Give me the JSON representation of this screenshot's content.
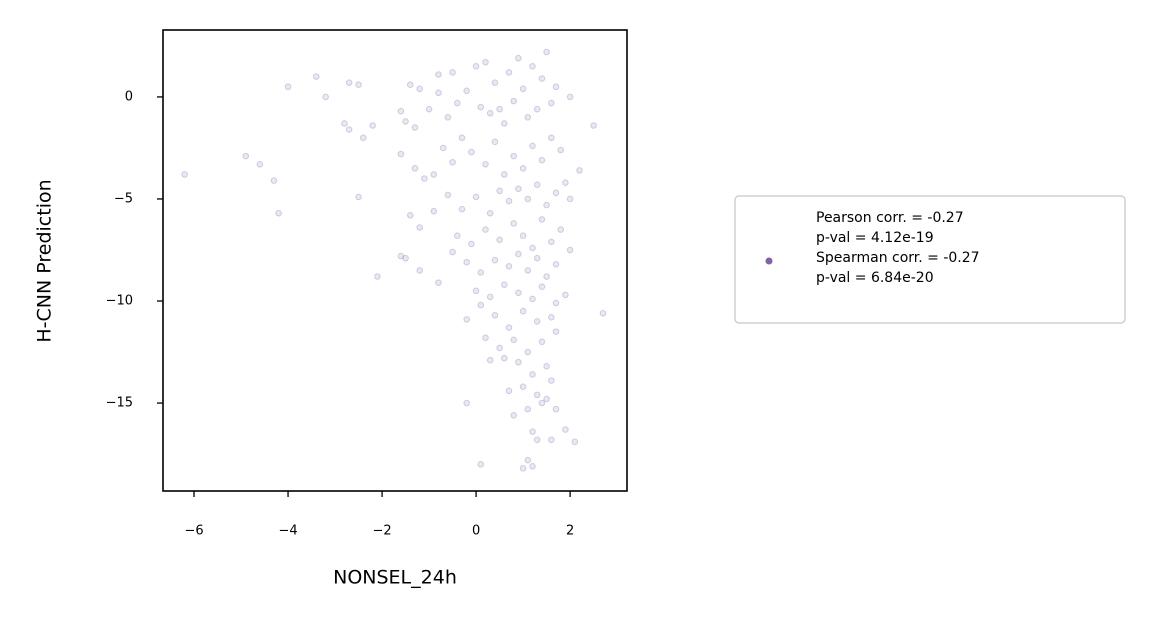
{
  "chart_data": {
    "type": "scatter",
    "x_label": "NONSEL_24h",
    "y_label": "H-CNN Prediction",
    "xlim": [
      -6.66,
      3.21
    ],
    "ylim": [
      -19.31,
      3.28
    ],
    "xticks": [
      {
        "value": -6,
        "label": "−6"
      },
      {
        "value": -4,
        "label": "−4"
      },
      {
        "value": -2,
        "label": "−2"
      },
      0,
      2
    ],
    "yticks": [
      0,
      {
        "value": -5,
        "label": "−5"
      },
      {
        "value": -10,
        "label": "−10"
      },
      {
        "value": -15,
        "label": "−15"
      }
    ],
    "legend": "right",
    "series": [
      {
        "name": [
          "Pearson corr. = -0.27",
          "p-val = 4.12e-19",
          "Spearman corr. = -0.27",
          "p-val = 6.84e-20"
        ],
        "color": "#8064a2",
        "x": [
          -6.2,
          -4.9,
          -4.6,
          -4.3,
          -4.2,
          -4.0,
          -3.4,
          -3.2,
          -2.7,
          -2.5,
          -2.8,
          -2.7,
          -2.4,
          -2.2,
          -2.5,
          -2.1,
          -1.6,
          -1.5,
          -1.2,
          2.7,
          2.5,
          2.0,
          2.1,
          1.9,
          0.1,
          -0.2,
          1.0,
          1.2,
          1.1,
          1.3,
          1.6,
          -1.6,
          -1.4,
          -1.2,
          -1.5,
          -1.3,
          -1.0,
          -0.8,
          -0.8,
          -0.5,
          -0.6,
          -0.4,
          -0.2,
          0.0,
          0.2,
          0.1,
          0.3,
          0.5,
          0.4,
          0.7,
          0.9,
          1.0,
          1.2,
          1.5,
          1.4,
          1.7,
          1.6,
          0.8,
          1.1,
          1.3,
          0.6,
          -1.6,
          -1.3,
          -1.1,
          -0.9,
          -0.7,
          -0.5,
          -0.3,
          -0.1,
          0.2,
          0.4,
          0.6,
          0.8,
          1.0,
          1.2,
          1.4,
          1.6,
          1.8,
          1.9,
          2.2,
          2.0,
          1.7,
          1.5,
          1.3,
          1.1,
          0.9,
          0.7,
          0.5,
          0.3,
          0.0,
          -0.3,
          -0.6,
          -0.9,
          -1.2,
          -1.4,
          -0.4,
          -0.1,
          0.2,
          0.5,
          0.8,
          1.0,
          1.2,
          1.4,
          1.6,
          1.8,
          2.0,
          1.7,
          1.5,
          1.3,
          1.1,
          0.9,
          0.7,
          0.4,
          0.1,
          -0.2,
          -0.5,
          -0.8,
          0.0,
          0.3,
          0.6,
          0.9,
          1.2,
          1.4,
          1.7,
          1.9,
          1.6,
          1.3,
          1.0,
          0.7,
          0.4,
          0.1,
          -0.2,
          0.2,
          0.5,
          0.8,
          1.1,
          1.4,
          1.7,
          1.5,
          1.2,
          0.9,
          0.6,
          0.3,
          1.0,
          1.3,
          1.6,
          0.8,
          1.1,
          1.4,
          0.7,
          1.5,
          1.2,
          1.7
        ],
        "values": [
          -3.8,
          -2.9,
          -3.3,
          -4.1,
          -5.7,
          0.5,
          1.0,
          0.0,
          0.7,
          0.6,
          -1.3,
          -1.6,
          -2.0,
          -1.4,
          -4.9,
          -8.8,
          -7.8,
          -7.9,
          -8.5,
          -10.6,
          -1.4,
          0.0,
          -16.9,
          -16.3,
          -18.0,
          -15.0,
          -18.2,
          -18.1,
          -17.8,
          -16.8,
          -16.8,
          -0.7,
          0.6,
          0.4,
          -1.2,
          -1.5,
          -0.6,
          0.2,
          1.1,
          1.2,
          -1.0,
          -0.3,
          0.3,
          1.5,
          1.7,
          -0.5,
          -0.8,
          -0.6,
          0.7,
          1.2,
          1.9,
          0.4,
          1.5,
          2.2,
          0.9,
          0.5,
          -0.3,
          -0.2,
          -1.0,
          -0.6,
          -1.3,
          -2.8,
          -3.5,
          -4.0,
          -3.8,
          -2.5,
          -3.2,
          -2.0,
          -2.7,
          -3.3,
          -2.2,
          -3.8,
          -2.9,
          -3.5,
          -2.4,
          -3.1,
          -2.0,
          -2.6,
          -4.2,
          -3.6,
          -5.0,
          -4.7,
          -5.3,
          -4.3,
          -5.0,
          -4.5,
          -5.1,
          -4.6,
          -5.7,
          -4.9,
          -5.5,
          -4.8,
          -5.6,
          -6.4,
          -5.8,
          -6.8,
          -7.2,
          -6.5,
          -7.0,
          -6.2,
          -6.8,
          -7.4,
          -6.0,
          -7.1,
          -6.5,
          -7.5,
          -8.2,
          -8.8,
          -7.9,
          -8.5,
          -7.7,
          -8.3,
          -8.0,
          -8.6,
          -8.1,
          -7.6,
          -9.1,
          -9.5,
          -9.8,
          -9.2,
          -9.6,
          -9.9,
          -9.3,
          -10.1,
          -9.7,
          -10.8,
          -11.0,
          -10.5,
          -11.3,
          -10.7,
          -10.2,
          -10.9,
          -11.8,
          -12.3,
          -11.9,
          -12.5,
          -12.0,
          -11.5,
          -13.2,
          -13.6,
          -13.0,
          -12.8,
          -12.9,
          -14.2,
          -14.6,
          -13.9,
          -15.6,
          -15.3,
          -15.0,
          -14.4,
          -14.8,
          -16.4,
          -15.3
        ]
      }
    ]
  }
}
